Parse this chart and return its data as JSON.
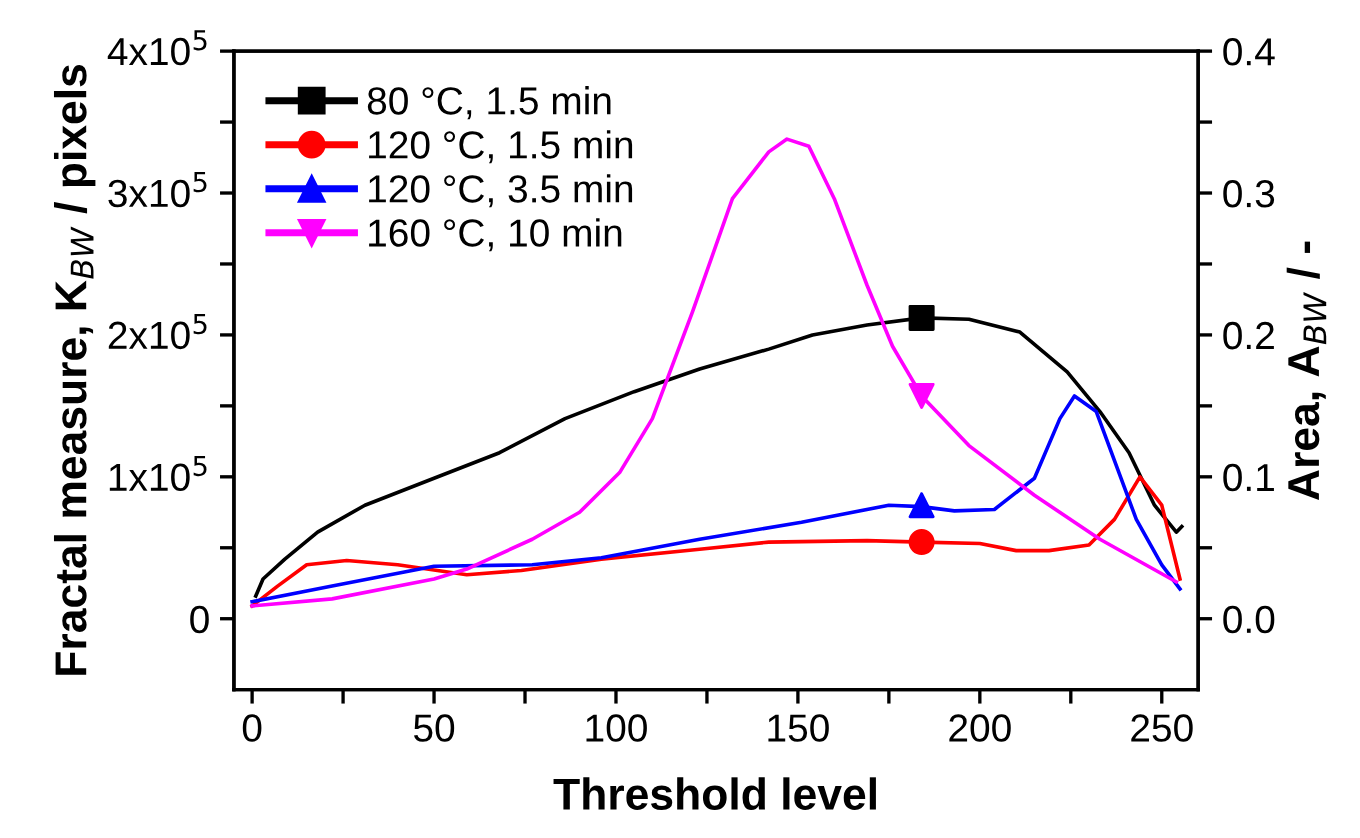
{
  "chart_data": {
    "type": "line",
    "xlabel": "Threshold level",
    "ylabel": "Fractal measure, K$_{BW}$ / pixels",
    "y2label": "Area, A$_{BW}$ / -",
    "xlim": [
      -5,
      260
    ],
    "xticks": [
      0,
      {
        "value": 25,
        "label": null
      },
      50,
      {
        "value": 75,
        "label": null
      },
      100,
      {
        "value": 125,
        "label": null
      },
      150,
      {
        "value": 175,
        "label": null
      },
      200,
      {
        "value": 225,
        "label": null
      },
      250
    ],
    "ylim": [
      -50000,
      400000
    ],
    "yticks": [
      {
        "value": 0,
        "label": "0"
      },
      {
        "value": 50000,
        "label": null
      },
      {
        "value": 100000,
        "label": "1x10$^{5}$"
      },
      {
        "value": 150000,
        "label": null
      },
      {
        "value": 200000,
        "label": "2x10$^{5}$"
      },
      {
        "value": 250000,
        "label": null
      },
      {
        "value": 300000,
        "label": "3x10$^{5}$"
      },
      {
        "value": 350000,
        "label": null
      },
      {
        "value": 400000,
        "label": "4x10$^{5}$"
      }
    ],
    "y2lim": [
      -0.05,
      0.4
    ],
    "y2ticks": [
      {
        "value": 0,
        "label": "0.0"
      },
      {
        "value": 0.05,
        "label": null
      },
      0.1,
      {
        "value": 0.15,
        "label": null
      },
      0.2,
      {
        "value": 0.25,
        "label": null
      },
      0.3,
      {
        "value": 0.35,
        "label": null
      },
      0.4
    ],
    "grid": false,
    "legend": "top left",
    "line_style": "solid",
    "series": [
      {
        "name": "80 °C, 1.5 min",
        "color": "#000000",
        "x": [
          1,
          3,
          9,
          18,
          31,
          50,
          68,
          86,
          105,
          123,
          142,
          154,
          169,
          184,
          197,
          211,
          224,
          233,
          241,
          248,
          254,
          255.5
        ],
        "values": [
          16000,
          28000,
          42000,
          61000,
          80000,
          99000,
          117000,
          141000,
          160000,
          176000,
          190000,
          200000,
          207000,
          212000,
          211000,
          202000,
          174000,
          146000,
          117000,
          80000,
          61000,
          65000
        ]
      },
      {
        "name": "120 °C, 1.5 min",
        "color": "#ff0000",
        "x": [
          0,
          7,
          15,
          26,
          40,
          59,
          74,
          96,
          123,
          142,
          169,
          184,
          200,
          210,
          219,
          230,
          237,
          244,
          250,
          255
        ],
        "values": [
          9000,
          23000,
          38000,
          41000,
          38000,
          31000,
          34000,
          42000,
          49000,
          54000,
          55000,
          54000,
          53000,
          48000,
          48000,
          52000,
          70000,
          100000,
          80000,
          28000
        ]
      },
      {
        "name": "120 °C, 3.5 min",
        "color": "#0000ff",
        "x": [
          0,
          22,
          50,
          77,
          96,
          123,
          151,
          175,
          184,
          193,
          204,
          215,
          222,
          226,
          232,
          243,
          250,
          255
        ],
        "values": [
          12000,
          23000,
          37000,
          38000,
          43000,
          56000,
          68000,
          80000,
          79000,
          76000,
          77000,
          99000,
          141000,
          157000,
          146000,
          70000,
          38000,
          21000
        ]
      },
      {
        "name": "160 °C, 10 min",
        "color": "#ff00ff",
        "x": [
          0,
          22,
          50,
          59,
          77,
          90,
          101,
          110,
          121,
          132,
          142,
          147,
          153,
          160,
          169,
          176,
          184,
          197,
          215,
          233,
          254
        ],
        "values": [
          9000,
          14000,
          28000,
          35000,
          56000,
          75000,
          103000,
          141000,
          216000,
          296000,
          329000,
          338000,
          333000,
          296000,
          235000,
          192000,
          157000,
          122000,
          87000,
          56000,
          26000
        ]
      },
      {
        "type": "scatter",
        "marker": "square",
        "color": "#000000",
        "x": [
          184
        ],
        "values": [
          212000
        ]
      },
      {
        "type": "scatter",
        "marker": "circle",
        "color": "#ff0000",
        "x": [
          184
        ],
        "values": [
          54000
        ]
      },
      {
        "type": "scatter",
        "marker": "triangle",
        "color": "#0000ff",
        "x": [
          184
        ],
        "values": [
          80000
        ]
      },
      {
        "type": "scatter",
        "marker": "triangle_down",
        "color": "#ff00ff",
        "x": [
          184
        ],
        "values": [
          157000
        ]
      }
    ]
  }
}
